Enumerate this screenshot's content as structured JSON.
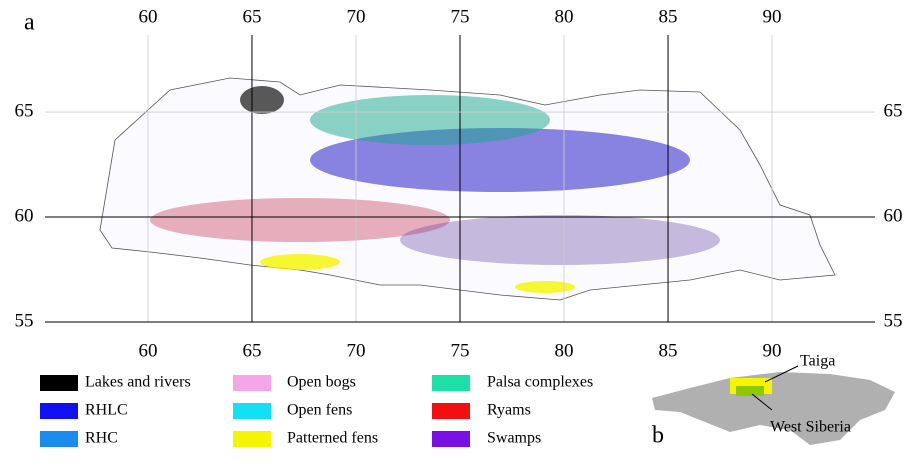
{
  "map": {
    "panel_a": "a",
    "panel_b": "b",
    "xlim": [
      55.05,
      94.95
    ],
    "ylim": [
      55,
      68.67
    ],
    "lon_ticks": [
      60,
      65,
      70,
      75,
      80,
      85,
      90
    ],
    "lat_ticks": [
      55,
      60,
      65
    ],
    "legend": [
      {
        "label": "Lakes and rivers",
        "color": "#000000"
      },
      {
        "label": "RHLC",
        "color": "#1010f0"
      },
      {
        "label": "RHC",
        "color": "#1a8cf0"
      },
      {
        "label": "Open bogs",
        "color": "#f4a6e8"
      },
      {
        "label": "Open fens",
        "color": "#12e0f5"
      },
      {
        "label": "Patterned fens",
        "color": "#f5f500"
      },
      {
        "label": "Palsa complexes",
        "color": "#1de0a8"
      },
      {
        "label": "Ryams",
        "color": "#f01010"
      },
      {
        "label": "Swamps",
        "color": "#7a10e6"
      }
    ],
    "inset": {
      "taiga": "Taiga",
      "region": "West Siberia"
    }
  }
}
